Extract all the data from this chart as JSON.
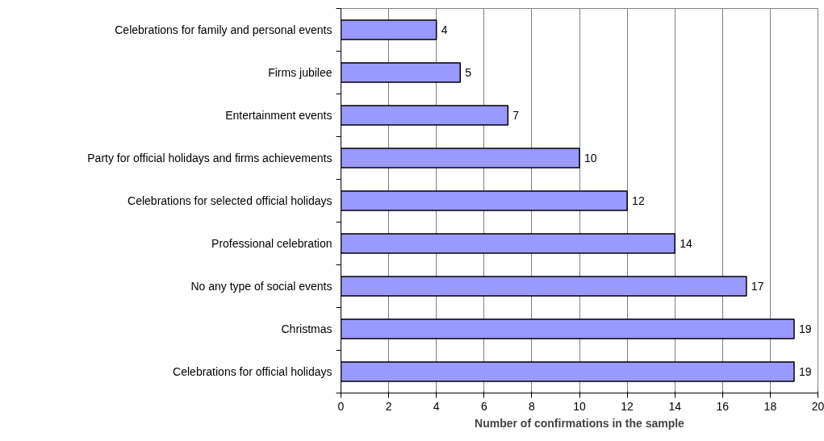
{
  "chart_data": {
    "type": "bar",
    "orientation": "horizontal",
    "xlabel": "Number of confirmations in the sample",
    "categories": [
      "Celebrations for family and personal events",
      "Firms jubilee",
      "Entertainment events",
      "Party for official holidays and firms achievements",
      "Celebrations for selected official holidays",
      "Professional celebration",
      "No any type of social events",
      "Christmas",
      "Celebrations for official holidays"
    ],
    "values": [
      4,
      5,
      7,
      10,
      12,
      14,
      17,
      19,
      19
    ],
    "color": "#9999ff",
    "xlim": [
      0,
      20
    ],
    "xticks": [
      0,
      2,
      4,
      6,
      8,
      10,
      12,
      14,
      16,
      18,
      20
    ],
    "grid": "x",
    "data_labels": true
  }
}
